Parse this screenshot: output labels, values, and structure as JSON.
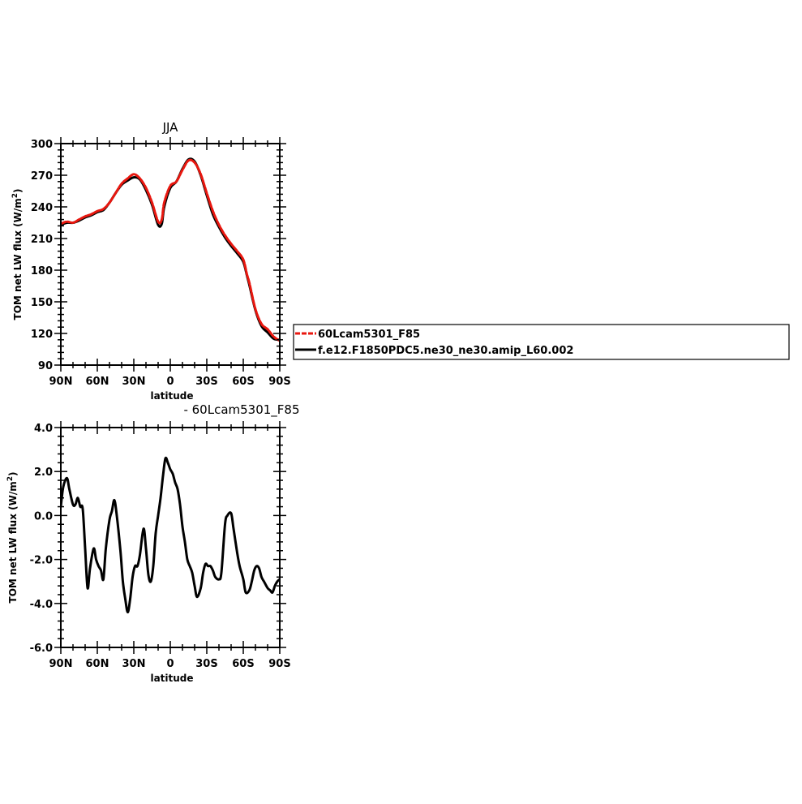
{
  "chart_data": [
    {
      "type": "line",
      "title": "JJA",
      "xlabel": "latitude",
      "ylabel": "TOM net LW flux (W/m²)",
      "ylabel_main": "TOM net LW flux (W/m",
      "ylabel_sup": "2",
      "ylabel_tail": ")",
      "xlim": [
        -90,
        90
      ],
      "ylim": [
        90,
        300
      ],
      "xticks": [
        -90,
        -60,
        -30,
        0,
        30,
        60,
        90
      ],
      "xtick_labels": [
        "90N",
        "60N",
        "30N",
        "0",
        "30S",
        "60S",
        "90S"
      ],
      "yticks": [
        90,
        120,
        150,
        180,
        210,
        240,
        270,
        300
      ],
      "ytick_labels": [
        "90",
        "120",
        "150",
        "180",
        "210",
        "240",
        "270",
        "300"
      ],
      "legend": "right",
      "grid": false,
      "series": [
        {
          "name": "60Lcam5301_F85",
          "color": "#e8170f",
          "style": "dashed",
          "x": [
            -90,
            -85,
            -80,
            -75,
            -70,
            -65,
            -60,
            -55,
            -50,
            -45,
            -40,
            -35,
            -30,
            -25,
            -20,
            -15,
            -10,
            -7,
            -5,
            0,
            5,
            10,
            15,
            20,
            25,
            30,
            35,
            40,
            45,
            50,
            55,
            60,
            63,
            65,
            70,
            75,
            80,
            85,
            90
          ],
          "y": [
            224,
            226,
            225,
            228,
            231,
            233,
            236,
            238,
            244,
            253,
            262,
            267,
            271,
            267,
            258,
            244,
            226,
            228,
            244,
            260,
            264,
            275,
            284,
            282,
            271,
            253,
            236,
            223,
            213,
            205,
            198,
            190,
            176,
            168,
            143,
            129,
            124,
            117,
            113
          ]
        },
        {
          "name": "f.e12.F1850PDC5.ne30_ne30.amip_L60.002",
          "color": "#000000",
          "style": "solid",
          "x": [
            -90,
            -85,
            -80,
            -75,
            -70,
            -65,
            -60,
            -55,
            -50,
            -45,
            -40,
            -35,
            -30,
            -25,
            -20,
            -15,
            -10,
            -7,
            -5,
            0,
            5,
            10,
            15,
            20,
            25,
            30,
            35,
            40,
            45,
            50,
            55,
            60,
            63,
            65,
            70,
            75,
            80,
            85,
            90
          ],
          "y": [
            223,
            225,
            225,
            227,
            230,
            232,
            235,
            237,
            244,
            253,
            261,
            265,
            268,
            266,
            256,
            242,
            223,
            224,
            240,
            258,
            264,
            276,
            285,
            283,
            270,
            251,
            233,
            221,
            211,
            203,
            196,
            188,
            175,
            166,
            142,
            127,
            121,
            115,
            114
          ]
        }
      ]
    },
    {
      "type": "line",
      "title": "- 60Lcam5301_F85",
      "xlabel": "latitude",
      "ylabel": "TOM net LW flux (W/m²)",
      "ylabel_main": "TOM net LW flux (W/m",
      "ylabel_sup": "2",
      "ylabel_tail": ")",
      "xlim": [
        -90,
        90
      ],
      "ylim": [
        -6,
        4
      ],
      "xticks": [
        -90,
        -60,
        -30,
        0,
        30,
        60,
        90
      ],
      "xtick_labels": [
        "90N",
        "60N",
        "30N",
        "0",
        "30S",
        "60S",
        "90S"
      ],
      "yticks": [
        -6,
        -4,
        -2,
        0,
        2,
        4
      ],
      "ytick_labels": [
        "-6.0",
        "-4.0",
        "-2.0",
        "0.0",
        "2.0",
        "4.0"
      ],
      "grid": false,
      "series": [
        {
          "color": "#000000",
          "style": "solid",
          "x": [
            -90,
            -88,
            -85,
            -83,
            -80,
            -78,
            -76,
            -74,
            -72,
            -70,
            -68,
            -66,
            -63,
            -61,
            -59,
            -57,
            -55,
            -53,
            -50,
            -48,
            -46,
            -44,
            -41,
            -39,
            -37,
            -35,
            -33,
            -31,
            -29,
            -27,
            -25,
            -22,
            -20,
            -18,
            -16,
            -14,
            -12,
            -10,
            -8,
            -6,
            -4,
            -2,
            0,
            2,
            4,
            6,
            8,
            10,
            12,
            14,
            16,
            18,
            20,
            22,
            25,
            27,
            29,
            31,
            33,
            35,
            37,
            40,
            42,
            45,
            47,
            50,
            52,
            55,
            57,
            60,
            62,
            65,
            67,
            69,
            71,
            73,
            75,
            77,
            80,
            82,
            84,
            86,
            88,
            90
          ],
          "y": [
            0.4,
            1.3,
            1.7,
            1.2,
            0.5,
            0.5,
            0.8,
            0.4,
            0.3,
            -1.5,
            -3.3,
            -2.4,
            -1.5,
            -2.0,
            -2.3,
            -2.5,
            -2.9,
            -1.5,
            -0.2,
            0.2,
            0.7,
            0.0,
            -1.6,
            -3.0,
            -3.8,
            -4.4,
            -3.8,
            -2.8,
            -2.3,
            -2.3,
            -1.8,
            -0.6,
            -1.5,
            -2.7,
            -3.0,
            -2.3,
            -0.8,
            0.0,
            0.8,
            1.8,
            2.6,
            2.4,
            2.1,
            1.9,
            1.5,
            1.2,
            0.5,
            -0.5,
            -1.2,
            -2.0,
            -2.3,
            -2.6,
            -3.2,
            -3.7,
            -3.3,
            -2.6,
            -2.2,
            -2.3,
            -2.3,
            -2.5,
            -2.8,
            -2.9,
            -2.6,
            -0.4,
            0.0,
            0.1,
            -0.6,
            -1.7,
            -2.3,
            -2.9,
            -3.5,
            -3.4,
            -3.0,
            -2.5,
            -2.3,
            -2.4,
            -2.8,
            -3.0,
            -3.3,
            -3.4,
            -3.5,
            -3.2,
            -3.0,
            -2.9
          ]
        }
      ]
    }
  ]
}
